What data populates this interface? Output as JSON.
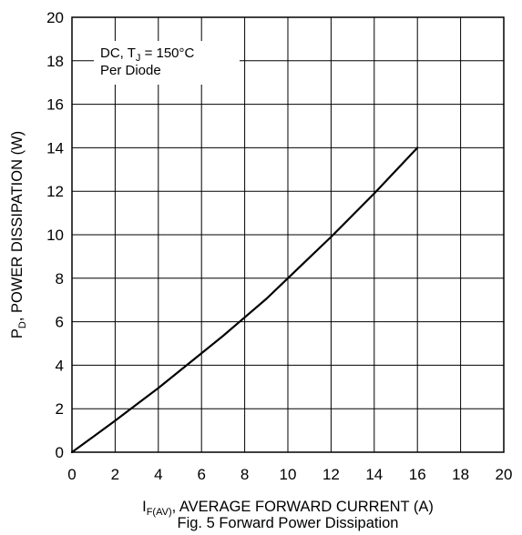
{
  "chart_data": {
    "type": "line",
    "title": "Fig. 5 Forward Power Dissipation",
    "xlabel": {
      "main": "I",
      "sub": "F(AV)",
      "rest": ", AVERAGE FORWARD CURRENT (A)"
    },
    "ylabel": {
      "main": "P",
      "sub": "D",
      "rest": ", POWER DISSIPATION (W)"
    },
    "xlim": [
      0,
      20
    ],
    "ylim": [
      0,
      20
    ],
    "x_ticks": [
      "0",
      "2",
      "4",
      "6",
      "8",
      "10",
      "12",
      "14",
      "16",
      "18",
      "20"
    ],
    "y_ticks": [
      "0",
      "2",
      "4",
      "6",
      "8",
      "10",
      "12",
      "14",
      "16",
      "18",
      "20"
    ],
    "grid": true,
    "annotation": {
      "line1_pre": "DC, T",
      "line1_sub": "J",
      "line1_post": " = 150°C",
      "line2": "Per Diode"
    },
    "series": [
      {
        "x": [
          0,
          1,
          2,
          3,
          4,
          5,
          6,
          7,
          8,
          9,
          10,
          11,
          12,
          13,
          14,
          15,
          16
        ],
        "y": [
          0,
          0.72,
          1.45,
          2.2,
          2.95,
          3.75,
          4.55,
          5.35,
          6.2,
          7.05,
          8.0,
          8.95,
          9.9,
          10.9,
          11.9,
          12.95,
          14.0
        ]
      }
    ]
  }
}
